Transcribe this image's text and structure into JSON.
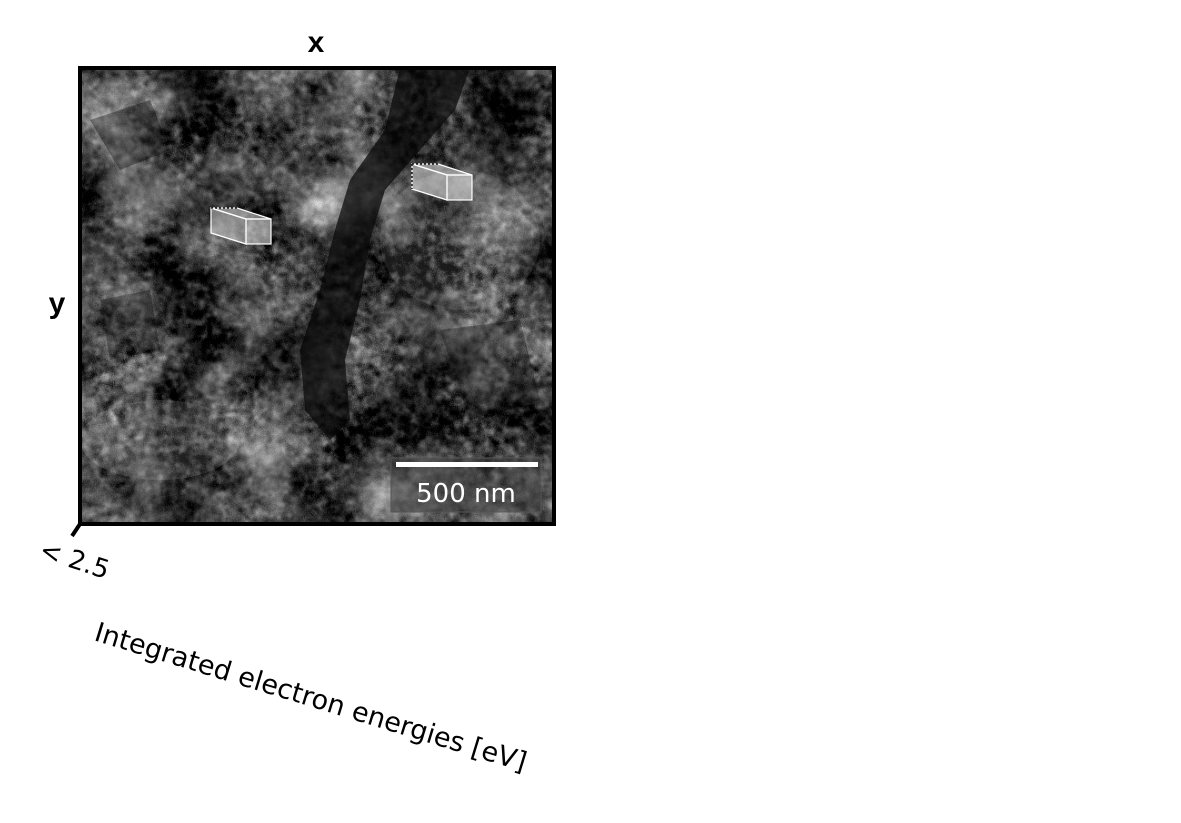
{
  "figure": {
    "x_axis_label": "x",
    "y_axis_label": "y",
    "energy_axis_label": "Integrated electron energies [eV]",
    "energy_tick_label": "< 2.5",
    "scale_bar_label": "500 nm"
  },
  "colors": {
    "frame": "#000000",
    "image_dark": "#1a1a1a",
    "image_light": "#bdbdbd",
    "scale_bar": "#ffffff",
    "scale_box": "#3a3a3a"
  },
  "icons": {
    "voxel_marker": "cube-icon"
  }
}
